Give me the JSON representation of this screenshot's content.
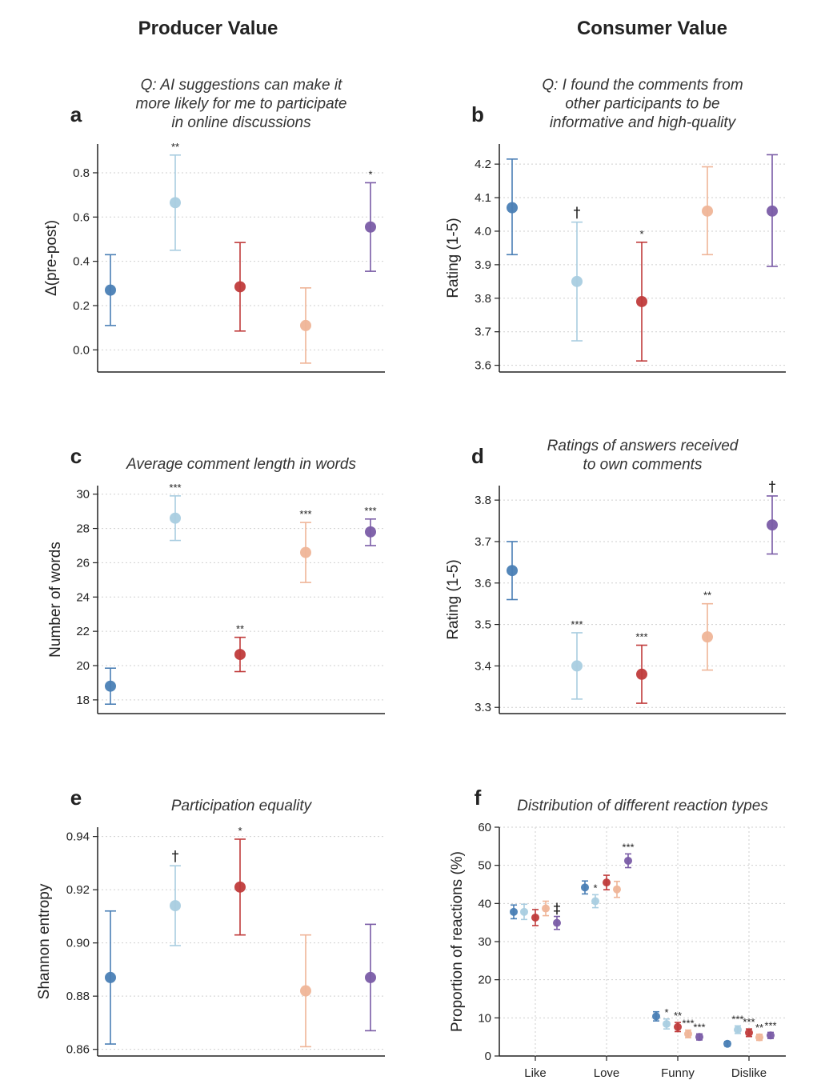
{
  "headers": {
    "left": "Producer Value",
    "right": "Consumer Value"
  },
  "colors": [
    "#4a7fb5",
    "#a9cde0",
    "#c03b3b",
    "#efb598",
    "#7a5ca6"
  ],
  "chart_data": [
    {
      "id": "a",
      "type": "scatter",
      "title_lines": [
        "Q: AI suggestions can make it",
        "more likely for me to participate",
        "in online discussions"
      ],
      "ylabel": "Δ(pre-post)",
      "ylim": [
        -0.1,
        0.93
      ],
      "yticks": [
        0.0,
        0.2,
        0.4,
        0.6,
        0.8
      ],
      "ytick_labels": [
        "0.0",
        "0.2",
        "0.4",
        "0.6",
        "0.8"
      ],
      "points": [
        {
          "value": 0.27,
          "low": 0.11,
          "high": 0.43,
          "sig": ""
        },
        {
          "value": 0.665,
          "low": 0.45,
          "high": 0.88,
          "sig": "**"
        },
        {
          "value": 0.285,
          "low": 0.085,
          "high": 0.485,
          "sig": ""
        },
        {
          "value": 0.11,
          "low": -0.06,
          "high": 0.28,
          "sig": ""
        },
        {
          "value": 0.555,
          "low": 0.355,
          "high": 0.755,
          "sig": "*"
        }
      ]
    },
    {
      "id": "b",
      "type": "scatter",
      "title_lines": [
        "Q: I found the comments from",
        "other participants to be",
        "informative and high-quality"
      ],
      "ylabel": "Rating (1-5)",
      "ylim": [
        3.58,
        4.26
      ],
      "yticks": [
        3.6,
        3.7,
        3.8,
        3.9,
        4.0,
        4.1,
        4.2
      ],
      "ytick_labels": [
        "3.6",
        "3.7",
        "3.8",
        "3.9",
        "4.0",
        "4.1",
        "4.2"
      ],
      "points": [
        {
          "value": 4.07,
          "low": 3.93,
          "high": 4.215,
          "sig": ""
        },
        {
          "value": 3.85,
          "low": 3.673,
          "high": 4.027,
          "sig": "†"
        },
        {
          "value": 3.79,
          "low": 3.613,
          "high": 3.967,
          "sig": "*"
        },
        {
          "value": 4.06,
          "low": 3.93,
          "high": 4.192,
          "sig": ""
        },
        {
          "value": 4.06,
          "low": 3.895,
          "high": 4.228,
          "sig": ""
        }
      ]
    },
    {
      "id": "c",
      "type": "scatter",
      "title_lines": [
        "Average comment length in words"
      ],
      "ylabel": "Number of words",
      "ylim": [
        17.2,
        30.5
      ],
      "yticks": [
        18,
        20,
        22,
        24,
        26,
        28,
        30
      ],
      "ytick_labels": [
        "18",
        "20",
        "22",
        "24",
        "26",
        "28",
        "30"
      ],
      "points": [
        {
          "value": 18.8,
          "low": 17.75,
          "high": 19.85,
          "sig": ""
        },
        {
          "value": 28.6,
          "low": 27.3,
          "high": 29.9,
          "sig": "***"
        },
        {
          "value": 20.65,
          "low": 19.65,
          "high": 21.65,
          "sig": "**"
        },
        {
          "value": 26.6,
          "low": 24.85,
          "high": 28.35,
          "sig": "***"
        },
        {
          "value": 27.8,
          "low": 27.0,
          "high": 28.55,
          "sig": "***"
        }
      ]
    },
    {
      "id": "d",
      "type": "scatter",
      "title_lines": [
        "Ratings of answers received",
        "to own comments"
      ],
      "ylabel": "Rating (1-5)",
      "ylim": [
        3.285,
        3.835
      ],
      "yticks": [
        3.3,
        3.4,
        3.5,
        3.6,
        3.7,
        3.8
      ],
      "ytick_labels": [
        "3.3",
        "3.4",
        "3.5",
        "3.6",
        "3.7",
        "3.8"
      ],
      "points": [
        {
          "value": 3.63,
          "low": 3.56,
          "high": 3.7,
          "sig": ""
        },
        {
          "value": 3.4,
          "low": 3.32,
          "high": 3.48,
          "sig": "***"
        },
        {
          "value": 3.38,
          "low": 3.31,
          "high": 3.45,
          "sig": "***"
        },
        {
          "value": 3.47,
          "low": 3.39,
          "high": 3.55,
          "sig": "**"
        },
        {
          "value": 3.74,
          "low": 3.67,
          "high": 3.81,
          "sig": "†"
        }
      ]
    },
    {
      "id": "e",
      "type": "scatter",
      "title_lines": [
        "Participation equality"
      ],
      "ylabel": "Shannon entropy",
      "ylim": [
        0.8575,
        0.9435
      ],
      "yticks": [
        0.86,
        0.88,
        0.9,
        0.92,
        0.94
      ],
      "ytick_labels": [
        "0.86",
        "0.88",
        "0.90",
        "0.92",
        "0.94"
      ],
      "points": [
        {
          "value": 0.887,
          "low": 0.862,
          "high": 0.912,
          "sig": ""
        },
        {
          "value": 0.914,
          "low": 0.899,
          "high": 0.929,
          "sig": "†"
        },
        {
          "value": 0.921,
          "low": 0.903,
          "high": 0.939,
          "sig": "*"
        },
        {
          "value": 0.882,
          "low": 0.861,
          "high": 0.903,
          "sig": ""
        },
        {
          "value": 0.887,
          "low": 0.867,
          "high": 0.907,
          "sig": ""
        }
      ]
    },
    {
      "id": "f",
      "type": "scatter",
      "title_lines": [
        "Distribution of different reaction types"
      ],
      "ylabel": "Proportion of reactions (%)",
      "ylim": [
        0,
        60
      ],
      "yticks": [
        0,
        10,
        20,
        30,
        40,
        50,
        60
      ],
      "ytick_labels": [
        "0",
        "10",
        "20",
        "30",
        "40",
        "50",
        "60"
      ],
      "categories": [
        "Like",
        "Love",
        "Funny",
        "Dislike"
      ],
      "grid": true,
      "groups": [
        {
          "category": "Like",
          "points": [
            {
              "value": 37.8,
              "low": 36.0,
              "high": 39.6,
              "sig": ""
            },
            {
              "value": 37.8,
              "low": 35.8,
              "high": 39.8,
              "sig": ""
            },
            {
              "value": 36.3,
              "low": 34.2,
              "high": 38.4,
              "sig": ""
            },
            {
              "value": 38.7,
              "low": 36.8,
              "high": 40.6,
              "sig": ""
            },
            {
              "value": 34.9,
              "low": 33.2,
              "high": 36.6,
              "sig": "‡"
            }
          ]
        },
        {
          "category": "Love",
          "points": [
            {
              "value": 44.2,
              "low": 42.5,
              "high": 45.9,
              "sig": ""
            },
            {
              "value": 40.6,
              "low": 38.9,
              "high": 42.3,
              "sig": "*"
            },
            {
              "value": 45.5,
              "low": 43.6,
              "high": 47.4,
              "sig": ""
            },
            {
              "value": 43.7,
              "low": 41.6,
              "high": 45.8,
              "sig": ""
            },
            {
              "value": 51.2,
              "low": 49.4,
              "high": 53.0,
              "sig": "***"
            }
          ]
        },
        {
          "category": "Funny",
          "points": [
            {
              "value": 10.4,
              "low": 9.2,
              "high": 11.6,
              "sig": ""
            },
            {
              "value": 8.4,
              "low": 7.1,
              "high": 9.7,
              "sig": "*"
            },
            {
              "value": 7.6,
              "low": 6.4,
              "high": 8.8,
              "sig": "**"
            },
            {
              "value": 5.8,
              "low": 4.8,
              "high": 6.8,
              "sig": "***"
            },
            {
              "value": 5.0,
              "low": 4.2,
              "high": 5.8,
              "sig": "***"
            }
          ]
        },
        {
          "category": "Dislike",
          "points": [
            {
              "value": 3.2,
              "low": 2.6,
              "high": 3.8,
              "sig": ""
            },
            {
              "value": 6.9,
              "low": 5.9,
              "high": 7.9,
              "sig": "***"
            },
            {
              "value": 6.1,
              "low": 5.1,
              "high": 7.1,
              "sig": "***"
            },
            {
              "value": 4.9,
              "low": 4.1,
              "high": 5.7,
              "sig": "**"
            },
            {
              "value": 5.4,
              "low": 4.6,
              "high": 6.2,
              "sig": "***"
            }
          ]
        }
      ]
    }
  ]
}
